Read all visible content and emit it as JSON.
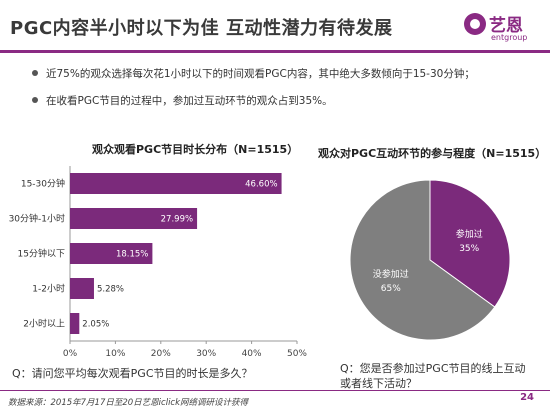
{
  "header": {
    "title": "PGC内容半小时以下为佳  互动性潜力有待发展",
    "logo_cn": "艺恩",
    "logo_en": "entgroup"
  },
  "bullets": [
    "近75%的观众选择每次花1小时以下的时间观看PGC内容，其中绝大多数倾向于15-30分钟；",
    "在收看PGC节目的过程中，参加过互动环节的观众占到35%。"
  ],
  "chart_data": [
    {
      "type": "bar",
      "orientation": "horizontal",
      "title": "观众观看PGC节目时长分布（N=1515）",
      "categories": [
        "15-30分钟",
        "30分钟-1小时",
        "15分钟以下",
        "1-2小时",
        "2小时以上"
      ],
      "values": [
        46.6,
        27.99,
        18.15,
        5.28,
        2.05
      ],
      "value_labels": [
        "46.60%",
        "27.99%",
        "18.15%",
        "5.28%",
        "2.05%"
      ],
      "xlim": [
        0,
        50
      ],
      "ticks": [
        "0%",
        "10%",
        "20%",
        "30%",
        "40%",
        "50%"
      ],
      "grid": false,
      "color": "#7b2a7b"
    },
    {
      "type": "pie",
      "title": "观众对PGC互动环节的参与程度（N=1515）",
      "slices": [
        {
          "label": "参加过",
          "value": 35,
          "value_label": "35%",
          "color": "#7b2a7b"
        },
        {
          "label": "没参加过",
          "value": 65,
          "value_label": "65%",
          "color": "#7f7f7f"
        }
      ]
    }
  ],
  "questions": {
    "q1": "Q：请问您平均每次观看PGC节目的时长是多久？",
    "q2": "Q：您是否参加过PGC节目的线上互动或者线下活动？"
  },
  "footer": {
    "source": "数据来源：2015年7月17日至20日艺恩iclick网络调研设计获得",
    "page_number": "24"
  }
}
